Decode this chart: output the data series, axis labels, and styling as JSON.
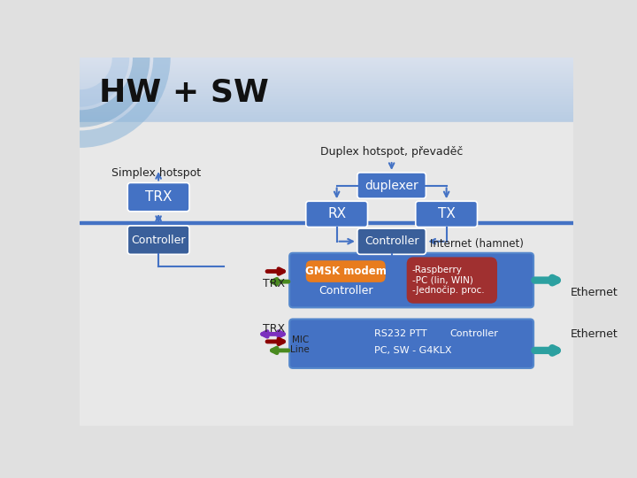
{
  "title": "HW + SW",
  "bg_top_color": "#c5d5e8",
  "bg_bottom_color": "#e8e8e8",
  "divider_color": "#4472c4",
  "box_color": "#4472c4",
  "box_color_dark": "#3a5f9a",
  "text_white": "#ffffff",
  "text_dark": "#222222",
  "simplex_label": "Simplex hotspot",
  "duplex_label": "Duplex hotspot, převaděč",
  "internet_label": "Internet (hamnet)",
  "ethernet_label1": "Ethernet",
  "ethernet_label2": "Ethernet",
  "gmsk_color": "#e87c1e",
  "raspberry_color": "#a03030",
  "arrow_color": "#4472c4",
  "ethernet_arrow_color": "#2ca0a0",
  "raspberry_text": "-Raspberry\n-PC (lin, WIN)\n-Jednočip. proc."
}
